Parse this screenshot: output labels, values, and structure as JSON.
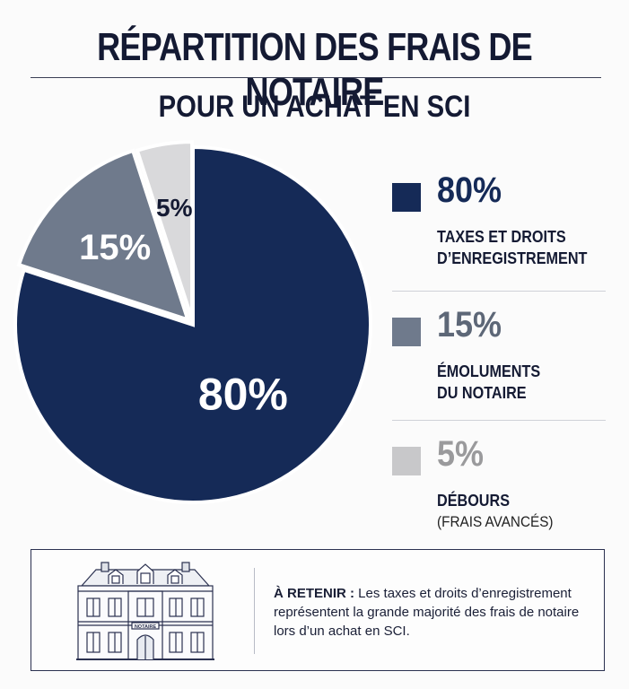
{
  "title": "RÉPARTITION DES FRAIS DE NOTAIRE",
  "subtitle": "POUR UN ACHAT EN SCI",
  "chart_data": {
    "type": "pie",
    "title": "RÉPARTITION DES FRAIS DE NOTAIRE",
    "subtitle": "POUR UN ACHAT EN SCI",
    "slices": [
      {
        "value": 80,
        "label": "80%",
        "category": "TAXES ET DROITS D’ENREGISTREMENT",
        "color": "#152a57",
        "label_color": "#ffffff"
      },
      {
        "value": 15,
        "label": "15%",
        "category": "ÉMOLUMENTS DU NOTAIRE",
        "color": "#6f7a8c",
        "label_color": "#ffffff"
      },
      {
        "value": 5,
        "label": "5%",
        "category": "DÉBOURS (FRAIS AVANCÉS)",
        "color": "#d9d9db",
        "label_color": "#141a33"
      }
    ],
    "legend": "right"
  },
  "legend": [
    {
      "pct": "80%",
      "line1": "TAXES ET DROITS",
      "line2": "D’ENREGISTREMENT",
      "extra": "",
      "color": "#152a57",
      "pct_color": "#152a57"
    },
    {
      "pct": "15%",
      "line1": "ÉMOLUMENTS",
      "line2": "DU NOTAIRE",
      "extra": "",
      "color": "#6f7a8c",
      "pct_color": "#5d6777"
    },
    {
      "pct": "5%",
      "line1": "DÉBOURS",
      "line2": "",
      "extra": "(FRAIS AVANCÉS)",
      "color": "#c8c8ca",
      "pct_color": "#9a9a9c"
    }
  ],
  "note": {
    "heading": "À RETENIR :",
    "body": "Les taxes et droits d’enregistrement représentent la grande majorité des frais de notaire lors d’un achat en SCI.",
    "building_sign": "NOTAIRE"
  }
}
